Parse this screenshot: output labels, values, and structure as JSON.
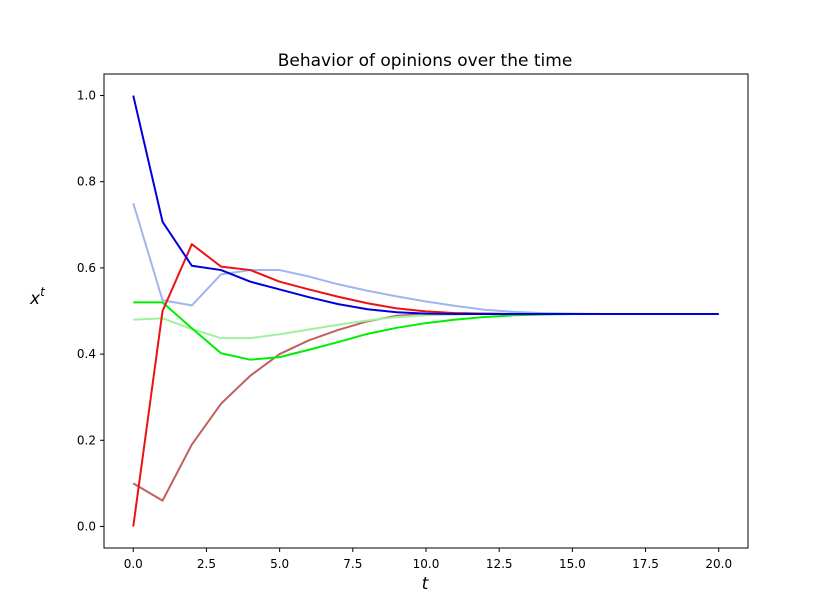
{
  "chart_data": {
    "type": "line",
    "title": "Behavior of opinions over the time",
    "xlabel": "t",
    "ylabel_base": "x",
    "ylabel_sup": "t",
    "xlim": [
      -1,
      21
    ],
    "ylim": [
      -0.05,
      1.05
    ],
    "xticks": [
      0,
      2.5,
      5,
      7.5,
      10,
      12.5,
      15,
      17.5,
      20
    ],
    "xtick_labels": [
      "0.0",
      "2.5",
      "5.0",
      "7.5",
      "10.0",
      "12.5",
      "15.0",
      "17.5",
      "20.0"
    ],
    "yticks": [
      0,
      0.2,
      0.4,
      0.6,
      0.8,
      1.0
    ],
    "ytick_labels": [
      "0.0",
      "0.2",
      "0.4",
      "0.6",
      "0.8",
      "1.0"
    ],
    "grid": false,
    "x": [
      0,
      1,
      2,
      3,
      4,
      5,
      6,
      7,
      8,
      9,
      10,
      11,
      12,
      13,
      14,
      15,
      16,
      17,
      18,
      19,
      20
    ],
    "series": [
      {
        "color": "#a0b4f0",
        "values": [
          0.75,
          0.525,
          0.513,
          0.585,
          0.595,
          0.595,
          0.58,
          0.562,
          0.547,
          0.534,
          0.522,
          0.512,
          0.503,
          0.498,
          0.495,
          0.494,
          0.493,
          0.493,
          0.493,
          0.493,
          0.493
        ]
      },
      {
        "color": "#c06060",
        "values": [
          0.1,
          0.06,
          0.19,
          0.285,
          0.35,
          0.4,
          0.432,
          0.456,
          0.476,
          0.489,
          0.493,
          0.495,
          0.494,
          0.493,
          0.493,
          0.493,
          0.493,
          0.493,
          0.493,
          0.493,
          0.493
        ]
      },
      {
        "color": "#a0f0a0",
        "values": [
          0.48,
          0.483,
          0.458,
          0.437,
          0.437,
          0.446,
          0.457,
          0.468,
          0.478,
          0.486,
          0.49,
          0.492,
          0.493,
          0.493,
          0.493,
          0.493,
          0.493,
          0.493,
          0.493,
          0.493,
          0.493
        ]
      },
      {
        "color": "#00ee00",
        "values": [
          0.52,
          0.52,
          0.46,
          0.402,
          0.387,
          0.393,
          0.41,
          0.428,
          0.447,
          0.461,
          0.472,
          0.48,
          0.486,
          0.49,
          0.492,
          0.493,
          0.493,
          0.493,
          0.493,
          0.493,
          0.493
        ]
      },
      {
        "color": "#ee1111",
        "values": [
          0.0,
          0.5,
          0.655,
          0.603,
          0.595,
          0.568,
          0.55,
          0.533,
          0.518,
          0.506,
          0.499,
          0.495,
          0.494,
          0.493,
          0.493,
          0.493,
          0.493,
          0.493,
          0.493,
          0.493,
          0.493
        ]
      },
      {
        "color": "#0000dd",
        "values": [
          1.0,
          0.707,
          0.605,
          0.595,
          0.568,
          0.55,
          0.532,
          0.516,
          0.504,
          0.497,
          0.494,
          0.493,
          0.493,
          0.493,
          0.493,
          0.493,
          0.493,
          0.493,
          0.493,
          0.493,
          0.493
        ]
      }
    ]
  }
}
